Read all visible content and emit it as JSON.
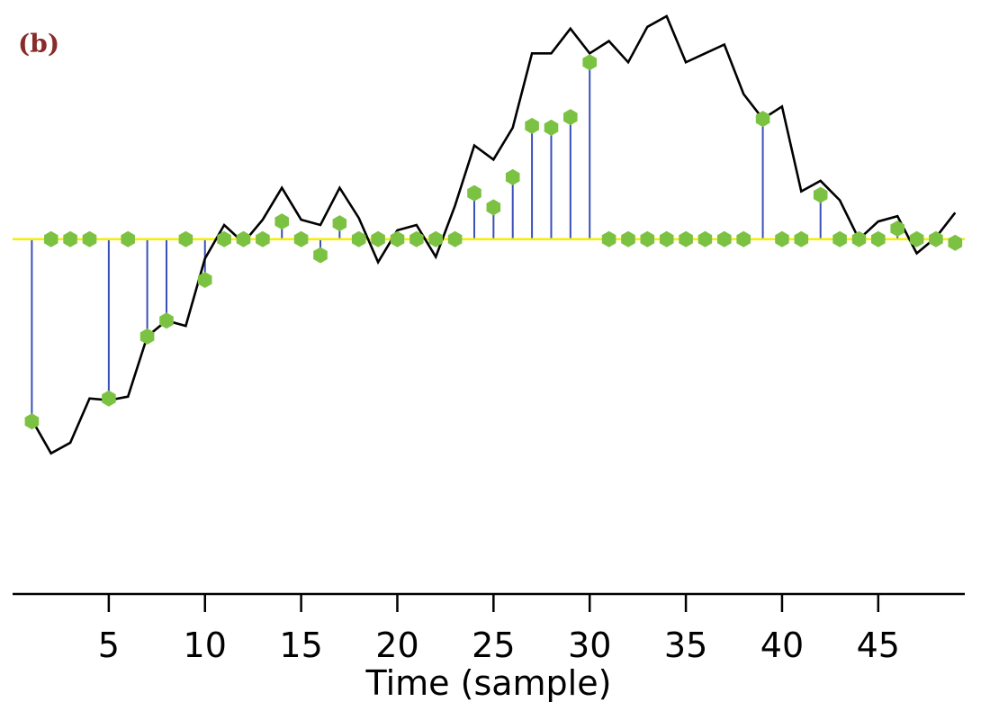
{
  "chart_data": {
    "type": "line",
    "panel_label": "(b)",
    "xlabel": "Time (sample)",
    "ylabel": "",
    "xlim": [
      0,
      49.5
    ],
    "ylim": [
      -1.7,
      1.25
    ],
    "xticks": [
      5,
      10,
      15,
      20,
      25,
      30,
      35,
      40,
      45
    ],
    "grid": false,
    "legend": "none",
    "baseline": 0,
    "series": [
      {
        "values_x": [
          1,
          2,
          3,
          4,
          5,
          6,
          7,
          8,
          9,
          10,
          11,
          12,
          13,
          14,
          15,
          16,
          17,
          18,
          19,
          20,
          21,
          22,
          23,
          24,
          25,
          26,
          27,
          28,
          29,
          30,
          31,
          32,
          33,
          34,
          35,
          36,
          37,
          38,
          39,
          40,
          41,
          42,
          43,
          44,
          45,
          46,
          47,
          48,
          49
        ],
        "values": [
          -1.02,
          -1.21,
          -1.15,
          -0.9,
          -0.91,
          -0.89,
          -0.55,
          -0.46,
          -0.49,
          -0.11,
          0.08,
          -0.02,
          0.11,
          0.29,
          0.11,
          0.08,
          0.29,
          0.12,
          -0.13,
          0.05,
          0.08,
          -0.1,
          0.19,
          0.53,
          0.45,
          0.63,
          1.05,
          1.05,
          1.19,
          1.05,
          1.12,
          1.0,
          1.2,
          1.26,
          1.0,
          1.05,
          1.1,
          0.82,
          0.68,
          0.75,
          0.27,
          0.33,
          0.22,
          0.0,
          0.1,
          0.13,
          -0.08,
          0.01,
          0.15
        ]
      },
      {
        "values_x": [
          1,
          2,
          3,
          4,
          5,
          6,
          7,
          8,
          9,
          10,
          11,
          12,
          13,
          14,
          15,
          16,
          17,
          18,
          19,
          20,
          21,
          22,
          23,
          24,
          25,
          26,
          27,
          28,
          29,
          30,
          31,
          32,
          33,
          34,
          35,
          36,
          37,
          38,
          39,
          40,
          41,
          42,
          43,
          44,
          45,
          46,
          47,
          48,
          49
        ],
        "values": [
          -1.03,
          0,
          0,
          0,
          -0.9,
          0,
          -0.55,
          -0.46,
          0,
          -0.23,
          0,
          0,
          0,
          0.1,
          0,
          -0.09,
          0.09,
          0,
          0,
          0,
          0,
          0,
          0,
          0.26,
          0.18,
          0.35,
          0.64,
          0.63,
          0.69,
          1.0,
          0,
          0,
          0,
          0,
          0,
          0,
          0,
          0,
          0.68,
          0,
          0,
          0.25,
          0,
          0,
          0,
          0.06,
          0,
          0,
          -0.02
        ]
      }
    ],
    "colors": {
      "trace": "#000000",
      "stems": "#3a4fb8",
      "markers": "#7cc242",
      "baseline": "#f4f000",
      "panel_label": "#8b2a2a"
    }
  }
}
